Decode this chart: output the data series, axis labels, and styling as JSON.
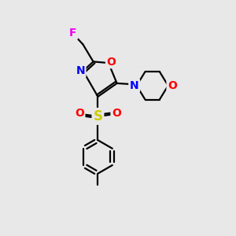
{
  "background_color": "#e8e8e8",
  "atom_colors": {
    "F": "#ee00ee",
    "O": "#ff0000",
    "N": "#0000ff",
    "S": "#cccc00",
    "C": "#000000"
  },
  "bond_color": "#000000",
  "bond_width": 1.6,
  "font_size_atoms": 10
}
